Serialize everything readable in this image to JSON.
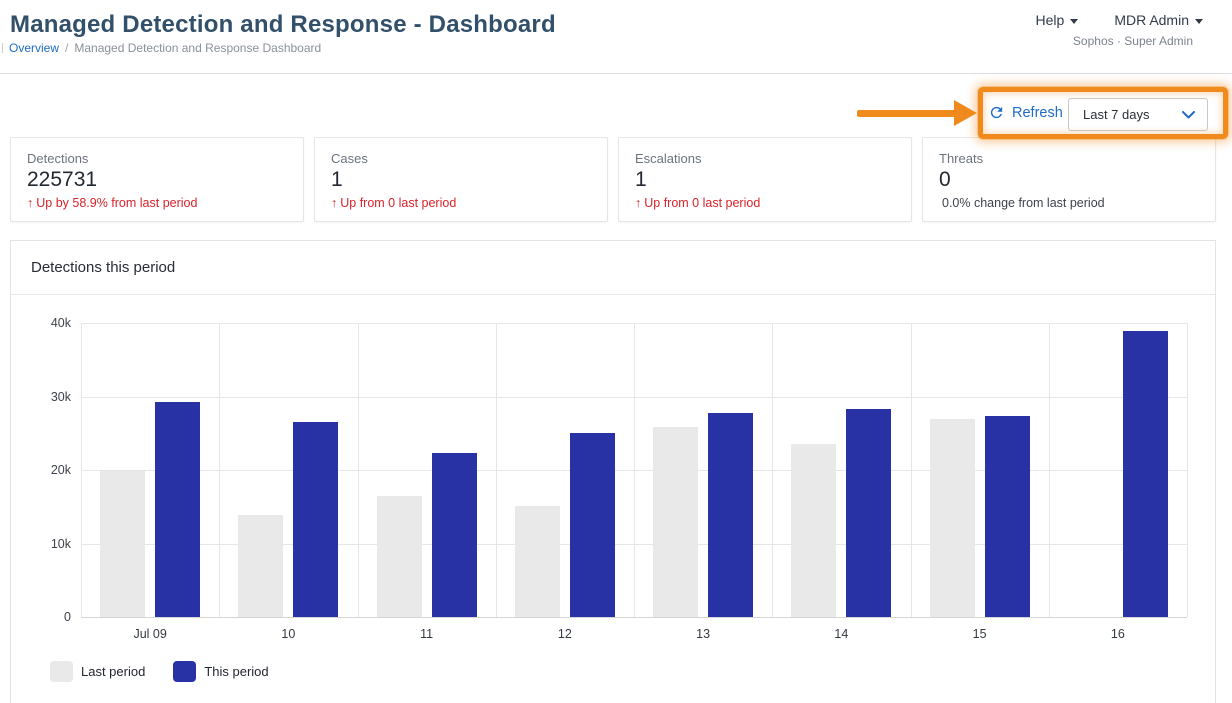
{
  "header": {
    "title": "Managed Detection and Response - Dashboard",
    "breadcrumb": {
      "link": "Overview",
      "separator": "/",
      "current": "Managed Detection and Response Dashboard"
    },
    "help_menu": "Help",
    "account_menu": "MDR Admin",
    "account_subtitle": "Sophos · Super Admin"
  },
  "toolbar": {
    "refresh_label": "Refresh",
    "time_range_value": "Last 7 days"
  },
  "cards": [
    {
      "label": "Detections",
      "value": "225731",
      "arrow": "↑",
      "delta": "Up by 58.9% from last period",
      "delta_type": "up"
    },
    {
      "label": "Cases",
      "value": "1",
      "arrow": "↑",
      "delta": "Up from 0 last period",
      "delta_type": "up"
    },
    {
      "label": "Escalations",
      "value": "1",
      "arrow": "↑",
      "delta": "Up from 0 last period",
      "delta_type": "up"
    },
    {
      "label": "Threats",
      "value": "0",
      "arrow": "",
      "delta": "0.0% change from last period",
      "delta_type": "neutral"
    }
  ],
  "chart": {
    "title": "Detections this period"
  },
  "chart_data": {
    "type": "bar",
    "title": "Detections this period",
    "categories": [
      "Jul 09",
      "10",
      "11",
      "12",
      "13",
      "14",
      "15",
      "16"
    ],
    "series": [
      {
        "name": "Last period",
        "color": "#e9e9e9",
        "values": [
          19900,
          13900,
          16400,
          15100,
          25800,
          23500,
          26900,
          0
        ]
      },
      {
        "name": "This period",
        "color": "#2932a4",
        "values": [
          29200,
          26600,
          22300,
          25100,
          27800,
          28300,
          27300,
          38900
        ]
      }
    ],
    "xlabel": "",
    "ylabel": "",
    "ylim": [
      0,
      40000
    ],
    "yticks": [
      "0",
      "10k",
      "20k",
      "30k",
      "40k"
    ],
    "grid": true,
    "legend_position": "bottom-left"
  },
  "colors": {
    "title_navy": "#33506b",
    "accent_blue": "#1e6bc8",
    "alert_red": "#d8232a",
    "bar_blue": "#2932a4",
    "bar_gray": "#e9e9e9",
    "annotation_orange": "#f08a1d"
  },
  "annotation": {
    "type": "highlight-box-with-arrow",
    "color": "#f08a1d"
  }
}
